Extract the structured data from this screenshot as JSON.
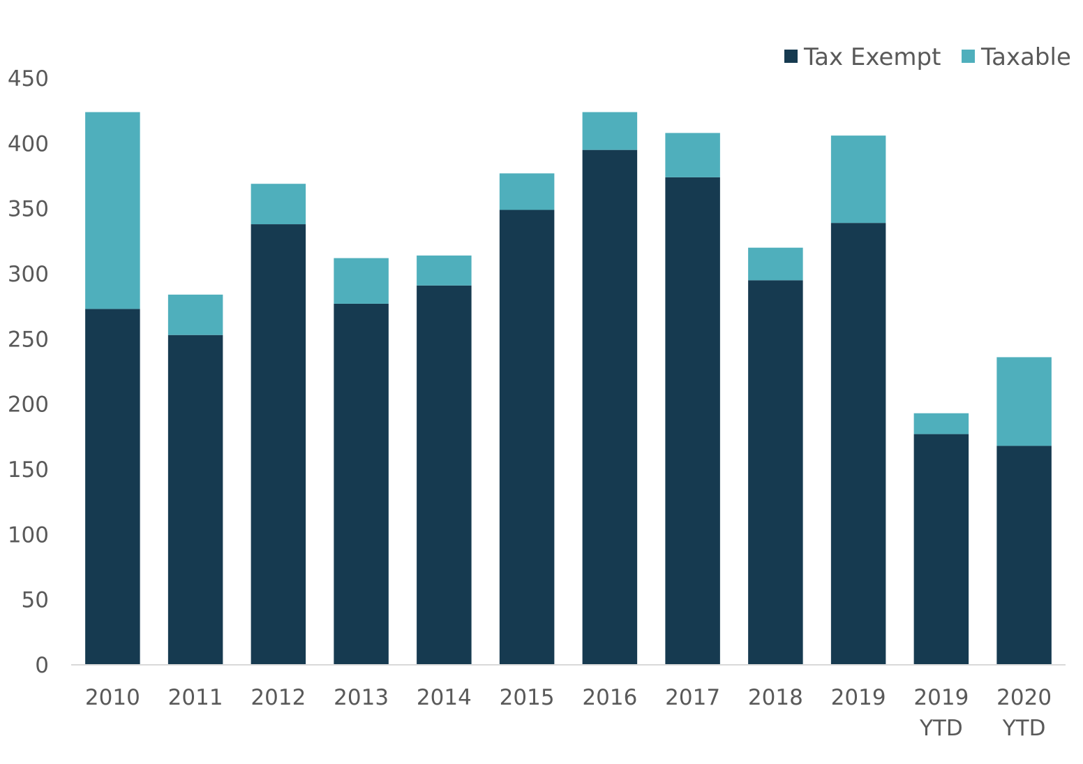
{
  "chart_data": {
    "type": "bar",
    "stacked": true,
    "title": "",
    "xlabel": "",
    "ylabel": "",
    "ylim": [
      0,
      450
    ],
    "yticks": [
      0,
      50,
      100,
      150,
      200,
      250,
      300,
      350,
      400,
      450
    ],
    "categories": [
      [
        "2010"
      ],
      [
        "2011"
      ],
      [
        "2012"
      ],
      [
        "2013"
      ],
      [
        "2014"
      ],
      [
        "2015"
      ],
      [
        "2016"
      ],
      [
        "2017"
      ],
      [
        "2018"
      ],
      [
        "2019"
      ],
      [
        "2019",
        "YTD"
      ],
      [
        "2020",
        "YTD"
      ]
    ],
    "series": [
      {
        "name": "Tax Exempt",
        "color": "#163A50",
        "values": [
          273,
          253,
          338,
          277,
          291,
          349,
          395,
          374,
          295,
          339,
          177,
          168
        ]
      },
      {
        "name": "Taxable",
        "color": "#4FAFBC",
        "values": [
          151,
          31,
          31,
          35,
          23,
          28,
          29,
          34,
          25,
          67,
          16,
          68
        ]
      }
    ],
    "legend_position": "top-right",
    "grid": false,
    "axis_color": "#D9D9D9"
  }
}
